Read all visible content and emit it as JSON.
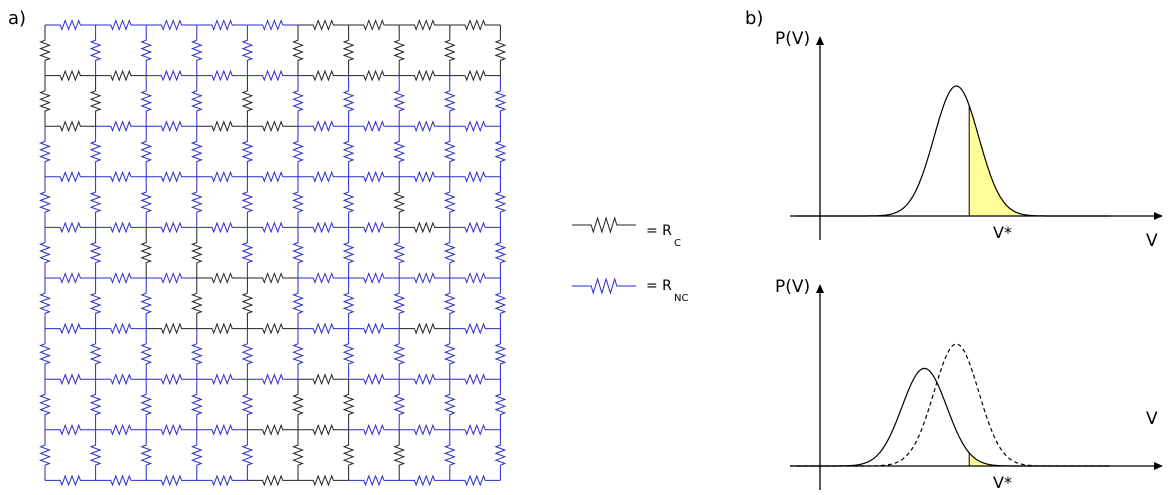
{
  "panel_a": {
    "label": "a)",
    "grid": {
      "rows": 10,
      "cols": 10,
      "horizontal": [
        "NNNNNCCCC",
        "CCNNNCCCC",
        "CNNCCNNNN",
        "NNNNNNNNN",
        "NNNNNNNCN",
        "NNNCCNNNN",
        "NNCCCNNCN",
        "NNNNNCNNN",
        "NNNNCCNNN",
        "NNNNCCNNN"
      ],
      "vertical": [
        "CNNNNCCCCC",
        "CCNNCNNNNN",
        "NNNNNNNNNN",
        "NNNNNNNCNN",
        "NNCCNNNNNN",
        "NNNCCNNNNN",
        "NNNNNNNNNN",
        "NNNNNCCNNN",
        "NNNNNCCCNN"
      ]
    },
    "colors": {
      "C": "#222222",
      "NC": "#2b2bcc"
    },
    "legend": [
      {
        "type": "C",
        "eq": "= R",
        "sub": "C"
      },
      {
        "type": "NC",
        "eq": "= R",
        "sub": "NC"
      }
    ]
  },
  "panel_b": {
    "label": "b)",
    "highlight_color": "#ffff99",
    "plots": [
      {
        "ylabel": "P(V)",
        "xlabel": "V",
        "threshold_label": "V*",
        "curves": [
          {
            "mean": 0.52,
            "sd": 0.07,
            "amp": 1.0,
            "style": "solid"
          }
        ],
        "shaded_curve": 0,
        "threshold": 0.56
      },
      {
        "ylabel": "P(V)",
        "xlabel": "V",
        "threshold_label": "V*",
        "curves": [
          {
            "mean": 0.52,
            "sd": 0.07,
            "amp": 1.0,
            "style": "dashed"
          },
          {
            "mean": 0.42,
            "sd": 0.07,
            "amp": 0.8,
            "style": "solid"
          }
        ],
        "shaded_curve": 1,
        "threshold": 0.56
      }
    ]
  }
}
